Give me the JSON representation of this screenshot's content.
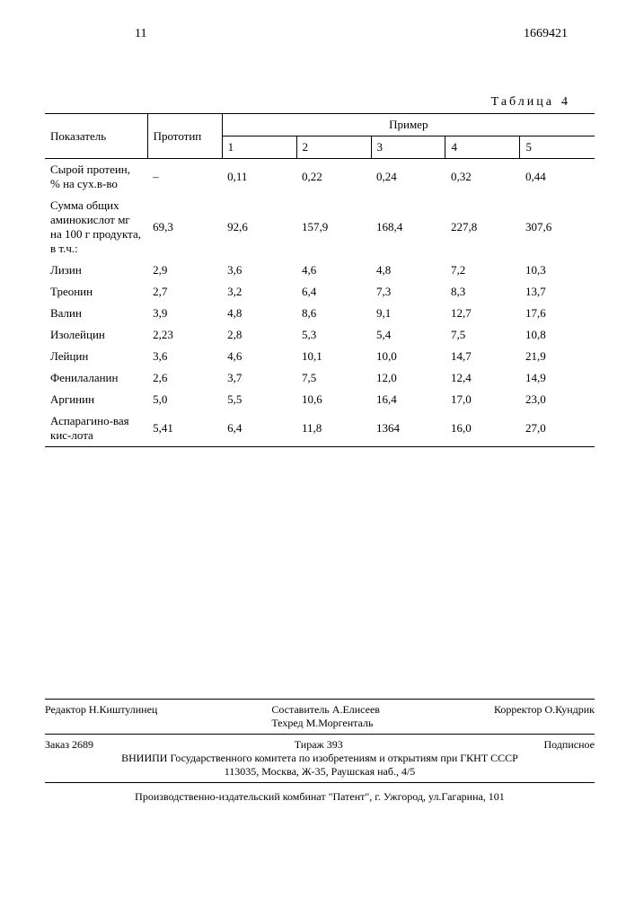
{
  "header": {
    "page_left": "11",
    "page_right": "1669421"
  },
  "table": {
    "caption_label": "Таблица",
    "caption_num": "4",
    "col_indicator": "Показатель",
    "col_proto": "Прототип",
    "col_example": "Пример",
    "example_cols": [
      "1",
      "2",
      "3",
      "4",
      "5"
    ],
    "rows": [
      {
        "label": "Сырой протеин, % на сух.в-во",
        "indent": false,
        "proto": "–",
        "v": [
          "0,11",
          "0,22",
          "0,24",
          "0,32",
          "0,44"
        ]
      },
      {
        "label": "Сумма общих аминокислот мг на 100 г продукта, в т.ч.:",
        "indent": false,
        "proto": "69,3",
        "v": [
          "92,6",
          "157,9",
          "168,4",
          "227,8",
          "307,6"
        ]
      },
      {
        "label": "Лизин",
        "indent": true,
        "proto": "2,9",
        "v": [
          "3,6",
          "4,6",
          "4,8",
          "7,2",
          "10,3"
        ]
      },
      {
        "label": "Треонин",
        "indent": true,
        "proto": "2,7",
        "v": [
          "3,2",
          "6,4",
          "7,3",
          "8,3",
          "13,7"
        ]
      },
      {
        "label": "Валин",
        "indent": true,
        "proto": "3,9",
        "v": [
          "4,8",
          "8,6",
          "9,1",
          "12,7",
          "17,6"
        ]
      },
      {
        "label": "Изолейцин",
        "indent": true,
        "proto": "2,23",
        "v": [
          "2,8",
          "5,3",
          "5,4",
          "7,5",
          "10,8"
        ]
      },
      {
        "label": "Лейцин",
        "indent": true,
        "proto": "3,6",
        "v": [
          "4,6",
          "10,1",
          "10,0",
          "14,7",
          "21,9"
        ]
      },
      {
        "label": "Фенилаланин",
        "indent": true,
        "proto": "2,6",
        "v": [
          "3,7",
          "7,5",
          "12,0",
          "12,4",
          "14,9"
        ]
      },
      {
        "label": "Аргинин",
        "indent": true,
        "proto": "5,0",
        "v": [
          "5,5",
          "10,6",
          "16,4",
          "17,0",
          "23,0"
        ]
      },
      {
        "label": "Аспарагино-вая кис-лота",
        "indent": true,
        "proto": "5,41",
        "v": [
          "6,4",
          "11,8",
          "1364",
          "16,0",
          "27,0"
        ]
      }
    ]
  },
  "credits": {
    "editor": "Редактор  Н.Киштулинец",
    "compiler": "Составитель  А.Елисеев",
    "techred": "Техред М.Моргенталь",
    "corrector": "Корректор   О.Кундрик",
    "order": "Заказ  2689",
    "tirazh": "Тираж   393",
    "subscr": "Подписное",
    "org1": "ВНИИПИ Государственного комитета по изобретениям и открытиям при ГКНТ СССР",
    "org2": "113035, Москва, Ж-35, Раушская наб., 4/5",
    "prod": "Производственно-издательский комбинат \"Патент\", г. Ужгород, ул.Гагарина, 101"
  }
}
